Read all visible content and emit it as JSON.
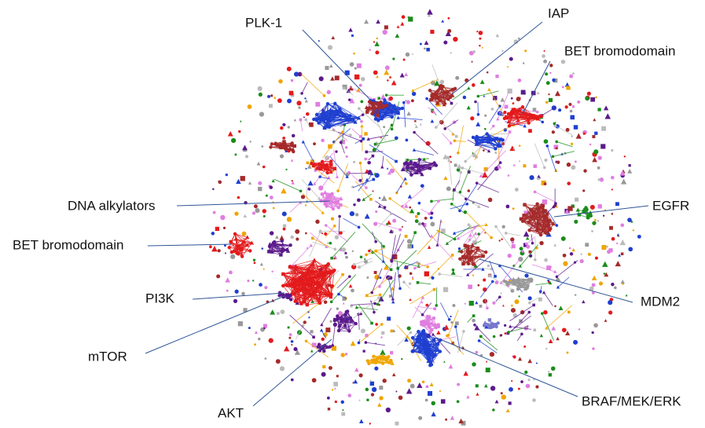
{
  "labels": [
    "PLK-1",
    "IAP",
    "BET bromodomain",
    "DNA alkylators",
    "EGFR",
    "BET bromodomain",
    "MDM2",
    "PI3K",
    "mTOR",
    "AKT",
    "BRAF/MEK/ERK"
  ]
}
